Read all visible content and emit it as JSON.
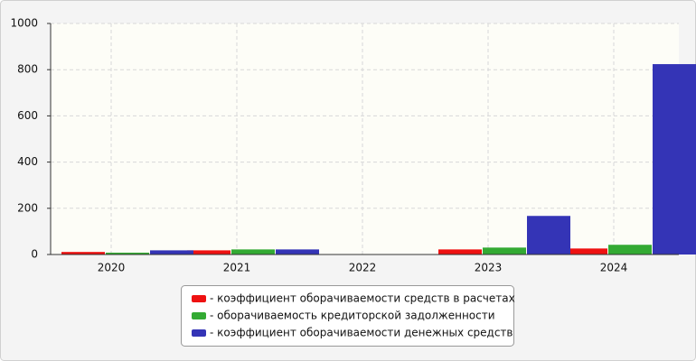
{
  "chart_data": {
    "type": "bar",
    "categories": [
      "2020",
      "2021",
      "2022",
      "2023",
      "2024"
    ],
    "series": [
      {
        "name": "- коэффициент оборачиваемости средств в расчетах",
        "color": "#ee1111",
        "values": [
          11,
          18,
          0,
          22,
          26
        ]
      },
      {
        "name": "- оборачиваемость кредиторской задолженности",
        "color": "#33aa33",
        "values": [
          8,
          22,
          0,
          30,
          42
        ]
      },
      {
        "name": "- коэффициент оборачиваемости денежных средств",
        "color": "#3434b6",
        "values": [
          18,
          22,
          0,
          167,
          824
        ]
      }
    ],
    "ylim": [
      0,
      1000
    ],
    "yticks": [
      0,
      200,
      400,
      600,
      800,
      1000
    ],
    "grid": true
  }
}
